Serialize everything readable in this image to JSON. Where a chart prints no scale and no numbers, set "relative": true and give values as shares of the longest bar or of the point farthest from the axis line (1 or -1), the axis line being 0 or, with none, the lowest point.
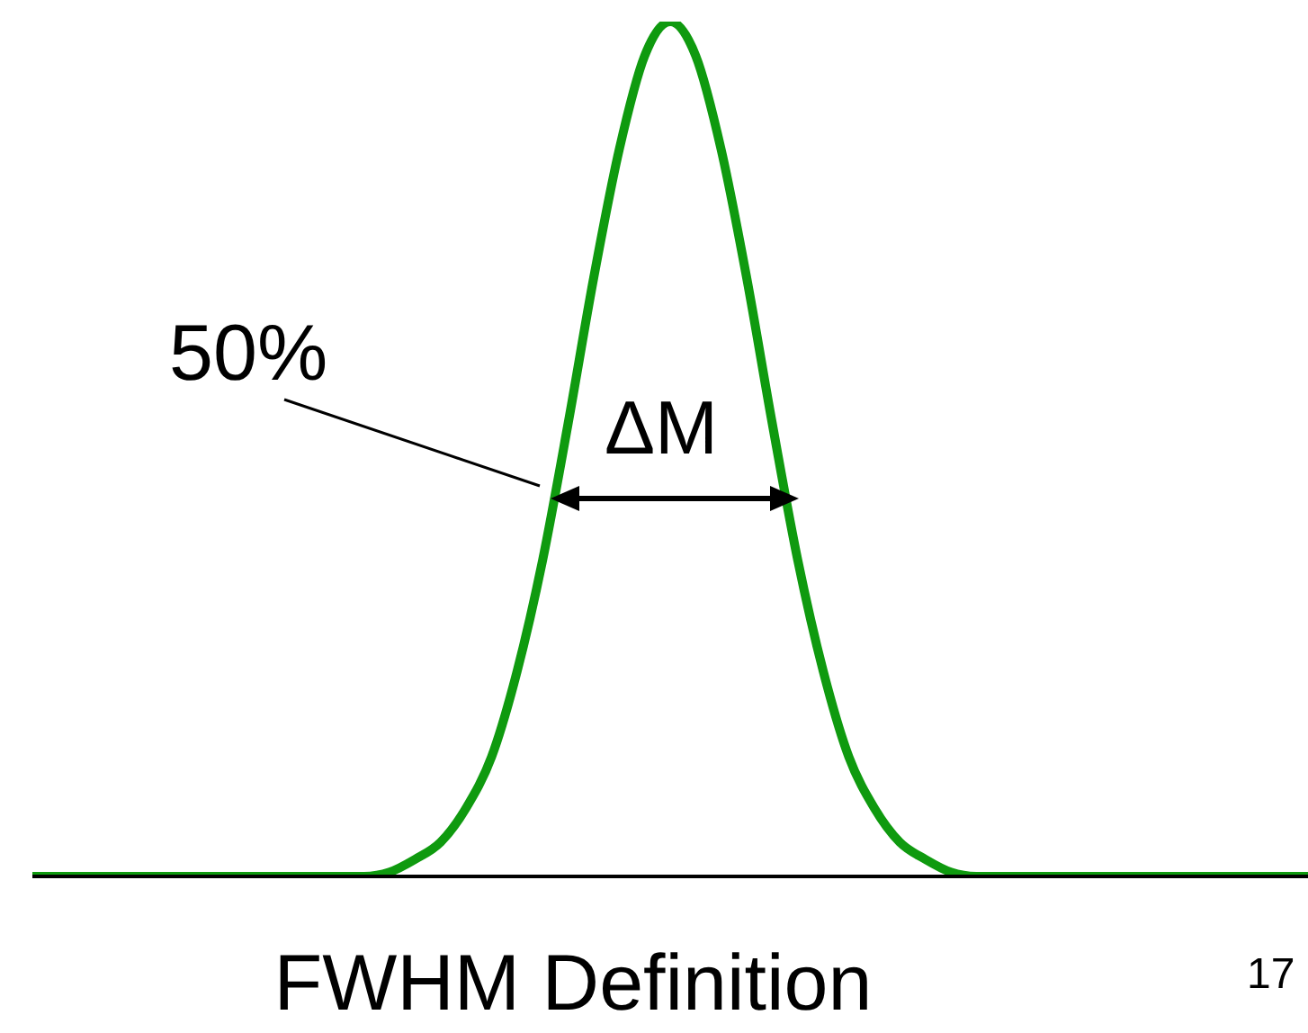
{
  "chart_data": {
    "type": "line",
    "relative": true,
    "xlabel": "FWHM Definition",
    "categories": [
      null,
      null,
      null,
      null,
      null,
      null,
      null,
      null,
      null,
      null,
      null,
      null,
      null,
      null,
      null,
      null,
      null,
      null,
      null,
      null,
      null,
      null,
      null,
      null,
      null,
      null,
      null,
      null,
      null,
      null,
      null,
      null,
      null,
      null,
      null,
      null,
      null,
      null,
      null,
      null,
      null,
      null,
      null,
      null,
      null,
      null,
      null,
      null,
      null,
      null,
      null
    ],
    "series": [
      {
        "color": "#0f9a0f",
        "values": [
          0,
          0,
          0,
          0,
          0,
          0,
          0,
          0,
          0,
          0,
          0,
          0,
          0,
          0,
          0.005,
          0.02,
          0.04,
          0.08,
          0.14,
          0.24,
          0.37,
          0.53,
          0.7,
          0.85,
          0.96,
          1,
          0.96,
          0.85,
          0.7,
          0.53,
          0.37,
          0.24,
          0.14,
          0.08,
          0.04,
          0.02,
          0.005,
          0,
          0,
          0,
          0,
          0,
          0,
          0,
          0,
          0,
          0,
          0,
          0,
          0,
          0
        ]
      }
    ],
    "annotations": [
      "50%",
      "ΔM",
      "17"
    ],
    "marker": "none",
    "line_style": "solid",
    "grid": false,
    "legend": false
  }
}
